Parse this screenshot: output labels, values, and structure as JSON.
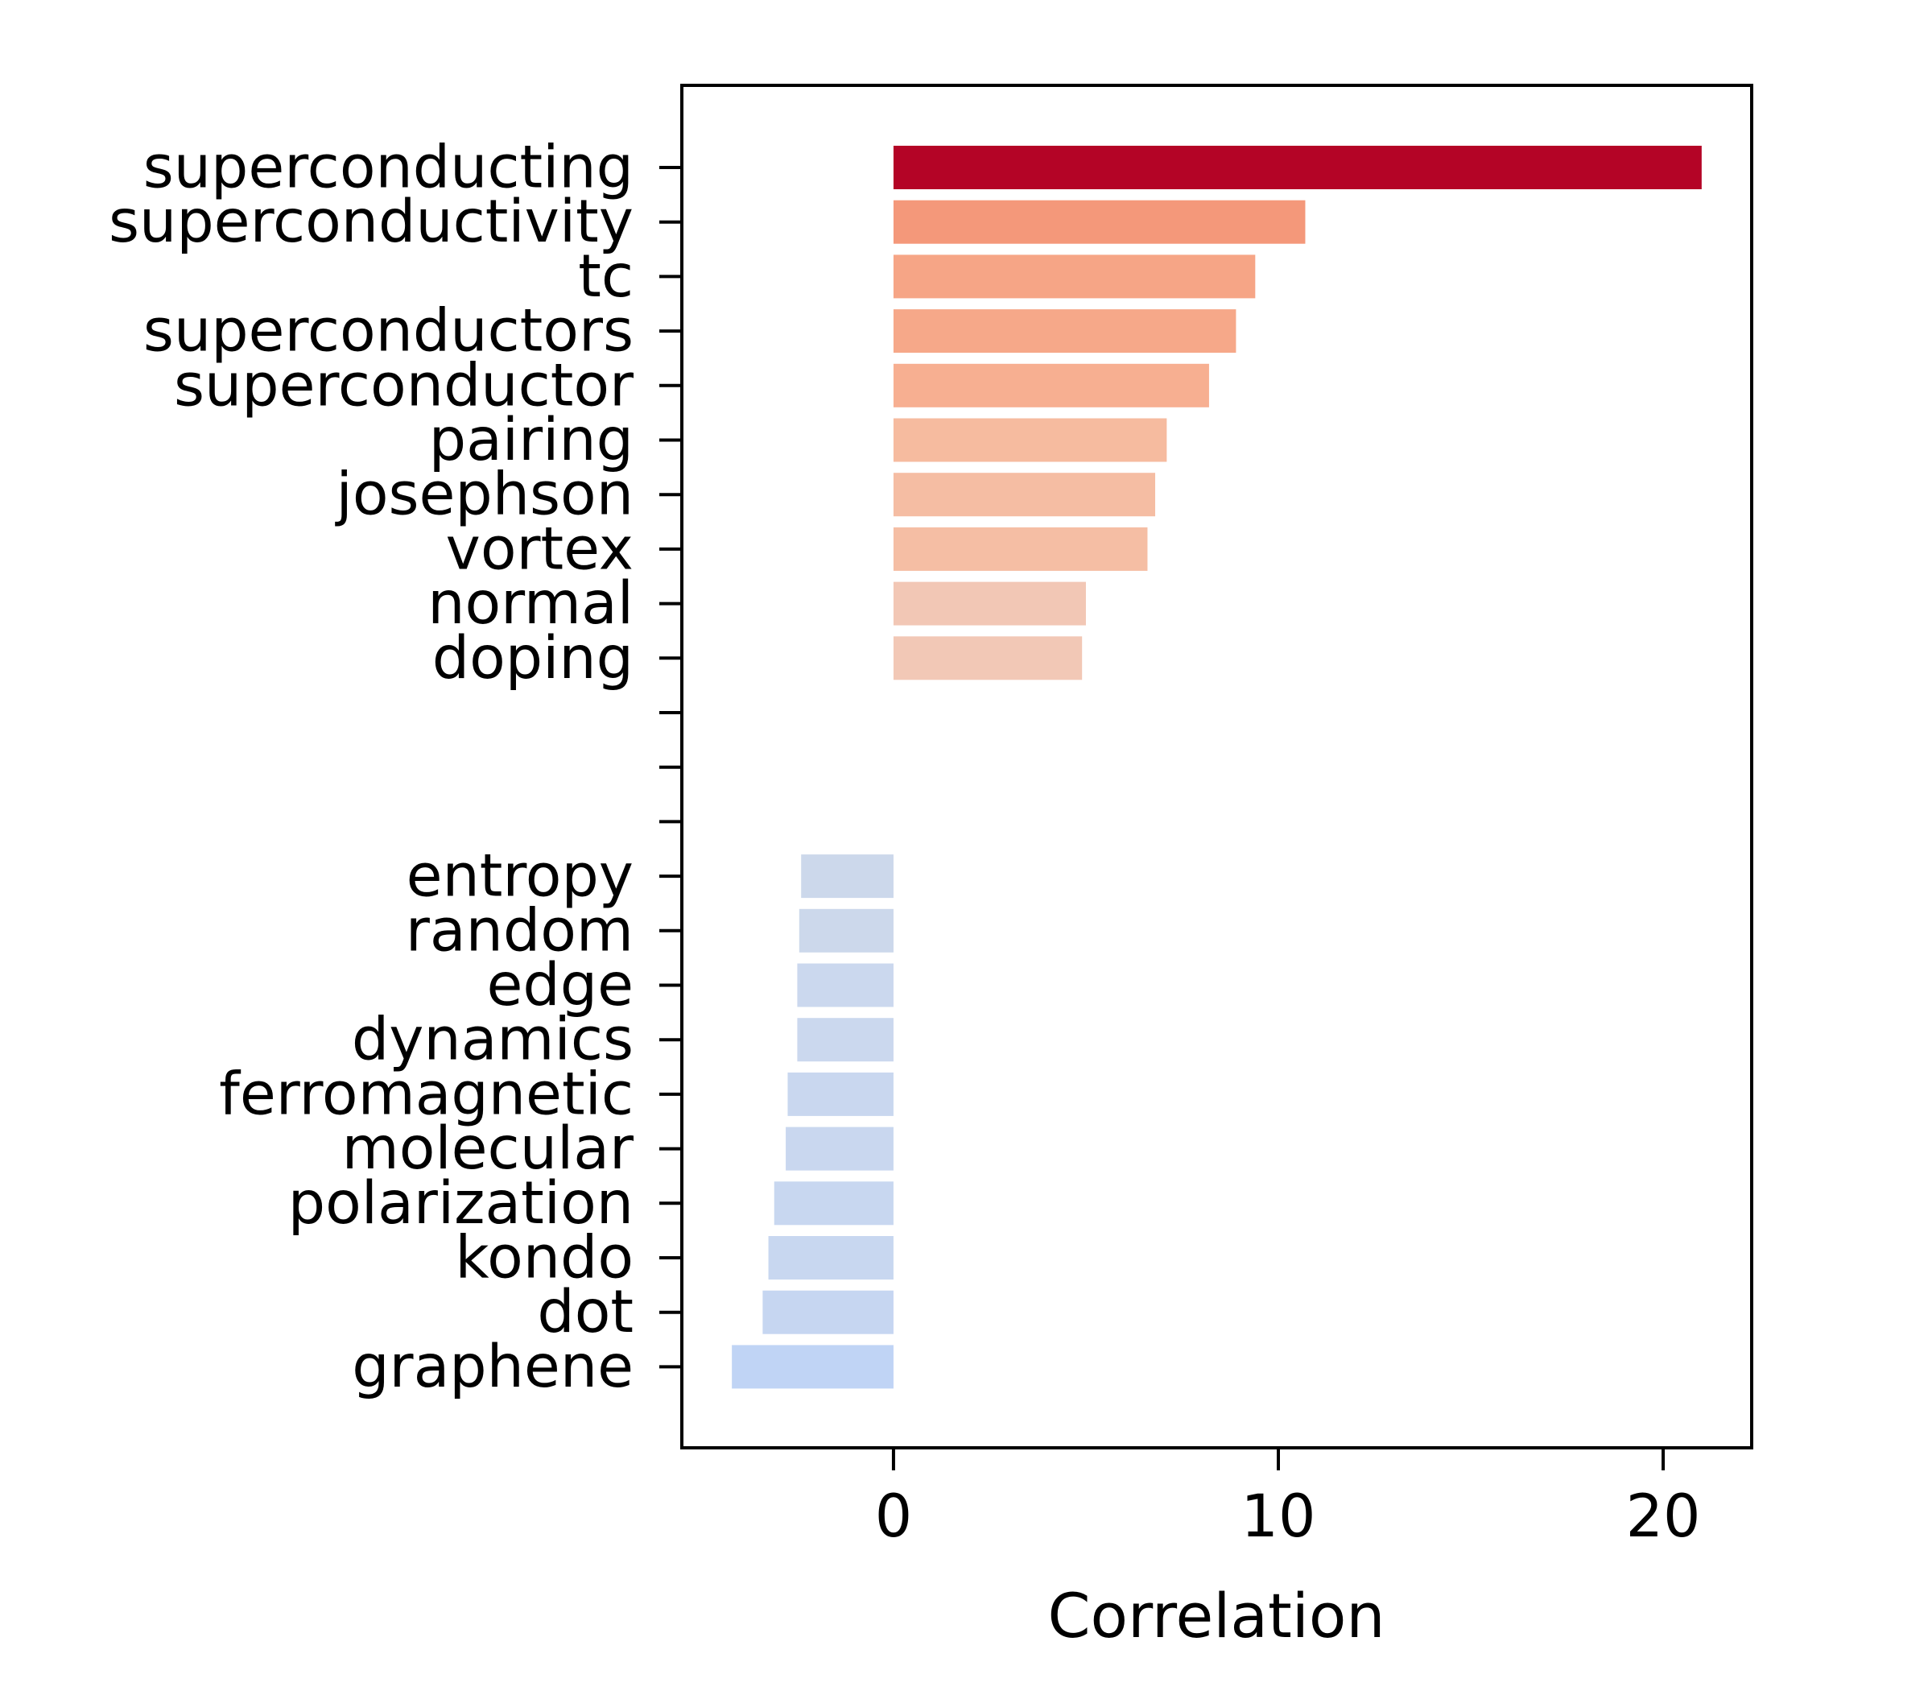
{
  "chart_data": {
    "type": "bar",
    "orientation": "horizontal",
    "title": "",
    "xlabel": "Correlation",
    "ylabel": "",
    "xlim": [
      -5.5,
      22.3
    ],
    "xticks": [
      0,
      10,
      20
    ],
    "grid": false,
    "legend": "none",
    "categories": [
      "superconducting",
      "superconductivity",
      "tc",
      "superconductors",
      "superconductor",
      "pairing",
      "josephson",
      "vortex",
      "normal",
      "doping",
      "",
      "",
      "",
      "entropy",
      "random",
      "edge",
      "dynamics",
      "ferromagnetic",
      "molecular",
      "polarization",
      "kondo",
      "dot",
      "graphene"
    ],
    "values": [
      21.0,
      10.7,
      9.4,
      8.9,
      8.2,
      7.1,
      6.8,
      6.6,
      5.0,
      4.9,
      null,
      null,
      null,
      -2.4,
      -2.45,
      -2.5,
      -2.5,
      -2.75,
      -2.8,
      -3.1,
      -3.25,
      -3.4,
      -4.2
    ],
    "colors": [
      "#b40426",
      "#f4987a",
      "#f6a586",
      "#f6a889",
      "#f7af91",
      "#f6bb9f",
      "#f5bda3",
      "#f5bea4",
      "#f2c7b5",
      "#f2c8b6",
      null,
      null,
      null,
      "#ccd8eb",
      "#ccd8eb",
      "#cbd8ee",
      "#cbd8ee",
      "#c9d7ef",
      "#c9d7ef",
      "#c8d7f0",
      "#c8d7f0",
      "#c6d6f1",
      "#c0d4f5"
    ]
  }
}
